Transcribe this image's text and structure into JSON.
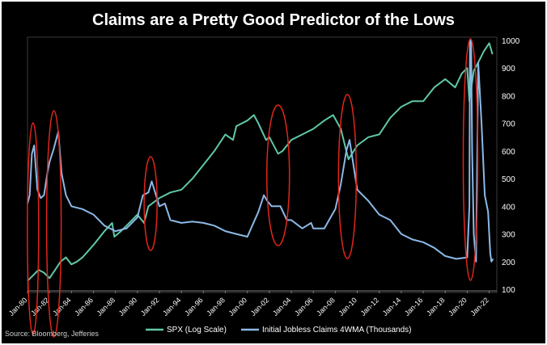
{
  "chart_data": {
    "type": "line",
    "title": "Claims are a Pretty Good Predictor of the Lows",
    "source": "Source: Bloomberg, Jefferies",
    "x_ticks": [
      "Jan-80",
      "Jan-82",
      "Jan-84",
      "Jan-86",
      "Jan-88",
      "Jan-90",
      "Jan-92",
      "Jan-94",
      "Jan-96",
      "Jan-98",
      "Jan-00",
      "Jan-02",
      "Jan-04",
      "Jan-06",
      "Jan-08",
      "Jan-10",
      "Jan-12",
      "Jan-14",
      "Jan-16",
      "Jan-18",
      "Jan-20",
      "Jan-22"
    ],
    "xlim": [
      1980,
      2022.4
    ],
    "y_right": {
      "ticks": [
        100,
        200,
        300,
        400,
        500,
        600,
        700,
        800,
        900,
        1000
      ],
      "ylim": [
        100,
        1000
      ]
    },
    "series": [
      {
        "name": "SPX (Log Scale)",
        "color": "#5fc8a8",
        "x": [
          1980,
          1980.5,
          1981,
          1981.5,
          1982,
          1982.6,
          1983,
          1983.5,
          1984,
          1984.5,
          1985,
          1986,
          1987,
          1987.7,
          1987.9,
          1988.5,
          1989,
          1989.5,
          1990,
          1990.6,
          1990.8,
          1991,
          1992,
          1993,
          1994,
          1995,
          1996,
          1997,
          1998,
          1998.7,
          1999,
          2000,
          2000.6,
          2001,
          2001.7,
          2002,
          2002.8,
          2003.2,
          2004,
          2005,
          2006,
          2007,
          2007.8,
          2008.5,
          2009,
          2009.2,
          2010,
          2011,
          2012,
          2013,
          2014,
          2015,
          2016,
          2017,
          2018,
          2018.9,
          2019.5,
          2020,
          2020.2,
          2020.6,
          2021,
          2021.5,
          2022,
          2022.3
        ],
        "values": [
          130,
          150,
          170,
          160,
          140,
          175,
          200,
          215,
          190,
          200,
          215,
          260,
          310,
          340,
          290,
          310,
          330,
          350,
          370,
          340,
          370,
          400,
          430,
          450,
          460,
          500,
          550,
          600,
          660,
          640,
          690,
          710,
          730,
          700,
          640,
          650,
          590,
          600,
          640,
          660,
          680,
          710,
          730,
          680,
          600,
          570,
          620,
          650,
          660,
          720,
          760,
          780,
          780,
          830,
          860,
          830,
          880,
          900,
          780,
          890,
          920,
          960,
          990,
          950
        ]
      },
      {
        "name": "Initial Jobless Claims 4WMA (Thousands)",
        "color": "#8cb9e6",
        "x": [
          1980,
          1980.2,
          1980.4,
          1980.6,
          1980.9,
          1981.2,
          1981.5,
          1981.8,
          1982,
          1982.4,
          1982.8,
          1983.1,
          1983.5,
          1984,
          1985,
          1986,
          1987,
          1988,
          1989,
          1990,
          1990.5,
          1991,
          1991.3,
          1992,
          1992.5,
          1993,
          1994,
          1995,
          1996,
          1997,
          1998,
          1999,
          2000,
          2001,
          2001.5,
          2001.8,
          2002.2,
          2003,
          2003.6,
          2004,
          2005,
          2005.8,
          2006,
          2007,
          2008,
          2008.5,
          2009,
          2009.3,
          2010,
          2011,
          2012,
          2013,
          2014,
          2015,
          2016,
          2017,
          2018,
          2019,
          2020,
          2020.2,
          2020.25,
          2020.35,
          2020.45,
          2020.6,
          2020.8,
          2021,
          2021.3,
          2021.6,
          2021.9,
          2022,
          2022.1,
          2022.2,
          2022.35
        ],
        "values": [
          410,
          440,
          590,
          620,
          460,
          430,
          440,
          520,
          560,
          610,
          670,
          520,
          440,
          400,
          390,
          370,
          330,
          310,
          320,
          360,
          440,
          450,
          490,
          400,
          410,
          350,
          340,
          345,
          340,
          330,
          310,
          300,
          290,
          380,
          440,
          420,
          400,
          400,
          350,
          350,
          320,
          340,
          320,
          320,
          390,
          480,
          600,
          640,
          460,
          420,
          370,
          350,
          300,
          280,
          270,
          250,
          220,
          210,
          215,
          400,
          1000,
          1000,
          600,
          300,
          200,
          920,
          700,
          440,
          380,
          300,
          230,
          200,
          210
        ]
      }
    ],
    "highlight_circles": [
      "Jan-80 low",
      "Jan-82 low",
      "Jan-91 low",
      "Jan-03 low",
      "Jan-09 low",
      "Jan-20 low"
    ]
  }
}
